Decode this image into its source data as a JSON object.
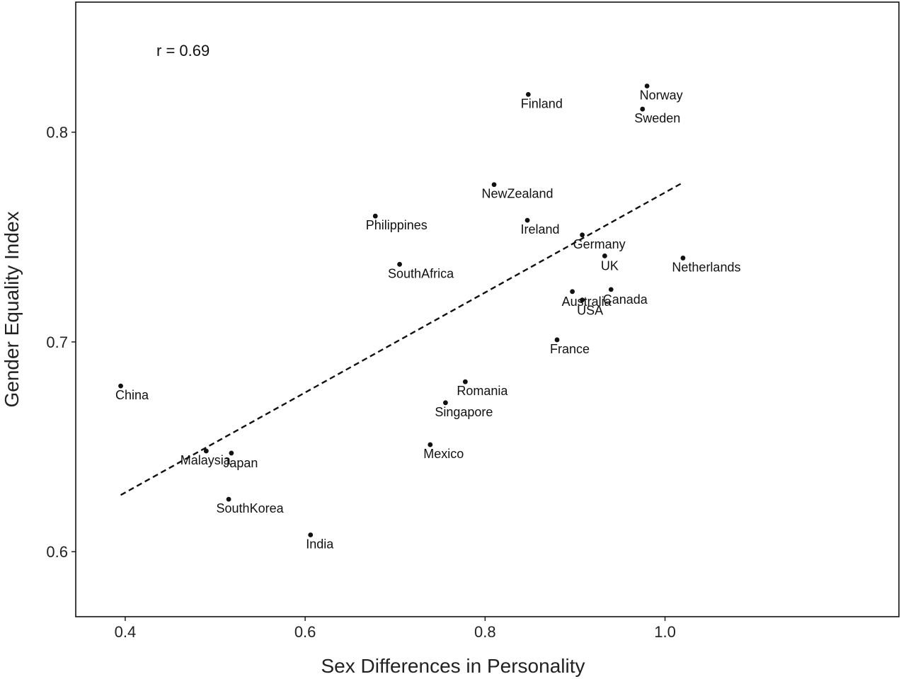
{
  "chart_data": {
    "type": "scatter",
    "xlabel": "Sex Differences in Personality",
    "ylabel": "Gender Equality Index",
    "annotation": "r = 0.69",
    "xlim": [
      0.345,
      1.26
    ],
    "ylim": [
      0.569,
      0.862
    ],
    "x_ticks": [
      0.4,
      0.6,
      0.8,
      1.0
    ],
    "x_tick_labels": [
      "0.4",
      "0.6",
      "0.8",
      "1.0"
    ],
    "y_ticks": [
      0.6,
      0.7,
      0.8
    ],
    "y_tick_labels": [
      "0.6",
      "0.7",
      "0.8"
    ],
    "grid": false,
    "points": [
      {
        "label": "China",
        "x": 0.395,
        "y": 0.679
      },
      {
        "label": "Malaysia",
        "x": 0.49,
        "y": 0.648
      },
      {
        "label": "Japan",
        "x": 0.518,
        "y": 0.647
      },
      {
        "label": "SouthKorea",
        "x": 0.515,
        "y": 0.625
      },
      {
        "label": "India",
        "x": 0.606,
        "y": 0.608
      },
      {
        "label": "Philippines",
        "x": 0.678,
        "y": 0.76
      },
      {
        "label": "SouthAfrica",
        "x": 0.705,
        "y": 0.737
      },
      {
        "label": "Mexico",
        "x": 0.739,
        "y": 0.651
      },
      {
        "label": "Singapore",
        "x": 0.756,
        "y": 0.671
      },
      {
        "label": "Romania",
        "x": 0.778,
        "y": 0.681
      },
      {
        "label": "NewZealand",
        "x": 0.81,
        "y": 0.775
      },
      {
        "label": "Finland",
        "x": 0.848,
        "y": 0.818
      },
      {
        "label": "Ireland",
        "x": 0.847,
        "y": 0.758
      },
      {
        "label": "France",
        "x": 0.88,
        "y": 0.701
      },
      {
        "label": "Australia",
        "x": 0.897,
        "y": 0.724
      },
      {
        "label": "USA",
        "x": 0.908,
        "y": 0.72
      },
      {
        "label": "Germany",
        "x": 0.908,
        "y": 0.751
      },
      {
        "label": "UK",
        "x": 0.933,
        "y": 0.741
      },
      {
        "label": "Canada",
        "x": 0.94,
        "y": 0.725
      },
      {
        "label": "Sweden",
        "x": 0.975,
        "y": 0.811
      },
      {
        "label": "Norway",
        "x": 0.98,
        "y": 0.822
      },
      {
        "label": "Netherlands",
        "x": 1.02,
        "y": 0.74
      }
    ],
    "trend_line": {
      "style": "dashed",
      "x": [
        0.395,
        1.02
      ],
      "y": [
        0.627,
        0.776
      ]
    },
    "colors": {
      "points": "#111111",
      "trend": "#111111",
      "frame": "#111111"
    }
  }
}
